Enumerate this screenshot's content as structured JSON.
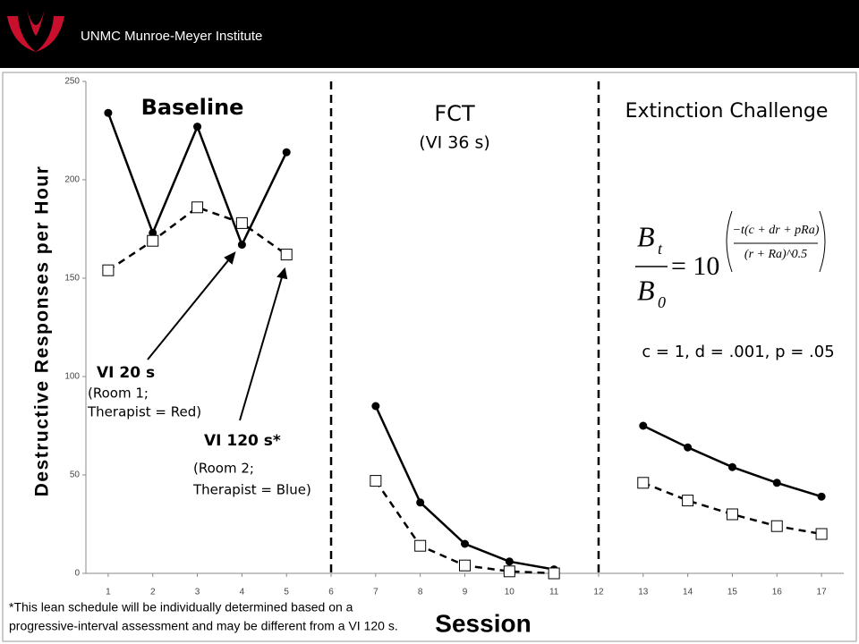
{
  "header": {
    "title": "UNMC Munroe-Meyer Institute"
  },
  "chart_data": {
    "type": "line",
    "ylabel": "Destructive Responses per Hour",
    "xlabel": "Session",
    "x": [
      1,
      2,
      3,
      4,
      5,
      6,
      7,
      8,
      9,
      10,
      11,
      12,
      13,
      14,
      15,
      16,
      17
    ],
    "xlim": [
      0.5,
      17.5
    ],
    "xticks": [
      1,
      2,
      3,
      4,
      5,
      6,
      7,
      8,
      9,
      10,
      11,
      12,
      13,
      14,
      15,
      16,
      17
    ],
    "ylim": [
      0,
      250
    ],
    "yticks": [
      0,
      50,
      100,
      150,
      200,
      250
    ],
    "phase_lines": [
      6,
      12
    ],
    "phase_labels": [
      "Baseline",
      "FCT",
      "(VI 36 s)",
      "Extinction Challenge"
    ],
    "series": [
      {
        "color": "#000000",
        "line_style": "solid",
        "marker": "circle",
        "values": [
          234,
          173,
          227,
          167,
          214,
          null,
          85,
          36,
          15,
          6,
          2,
          null,
          75,
          64,
          54,
          46,
          39
        ]
      },
      {
        "color": "#000000",
        "line_style": "dashed",
        "marker": "square",
        "values": [
          154,
          169,
          186,
          178,
          162,
          null,
          47,
          14,
          4,
          1,
          0,
          null,
          46,
          37,
          30,
          24,
          20
        ]
      }
    ],
    "annotations": [
      "VI 20 s",
      "(Room 1;",
      "Therapist = Red)",
      "VI 120 s*",
      "(Room 2;",
      "Therapist = Blue)",
      "c = 1, d = .001, p = .05"
    ],
    "equation": {
      "numerator": "B",
      "numerator_sub": "t",
      "denominator": "B",
      "denominator_sub": "0",
      "equals": "= 10",
      "exp_top": "−t(c + dr + pRa)",
      "exp_bottom": "(r + Ra)^0.5"
    },
    "footnote": [
      "*This lean schedule will be individually determined based on a",
      "progressive-interval assessment and may be different from a VI 120 s."
    ]
  }
}
